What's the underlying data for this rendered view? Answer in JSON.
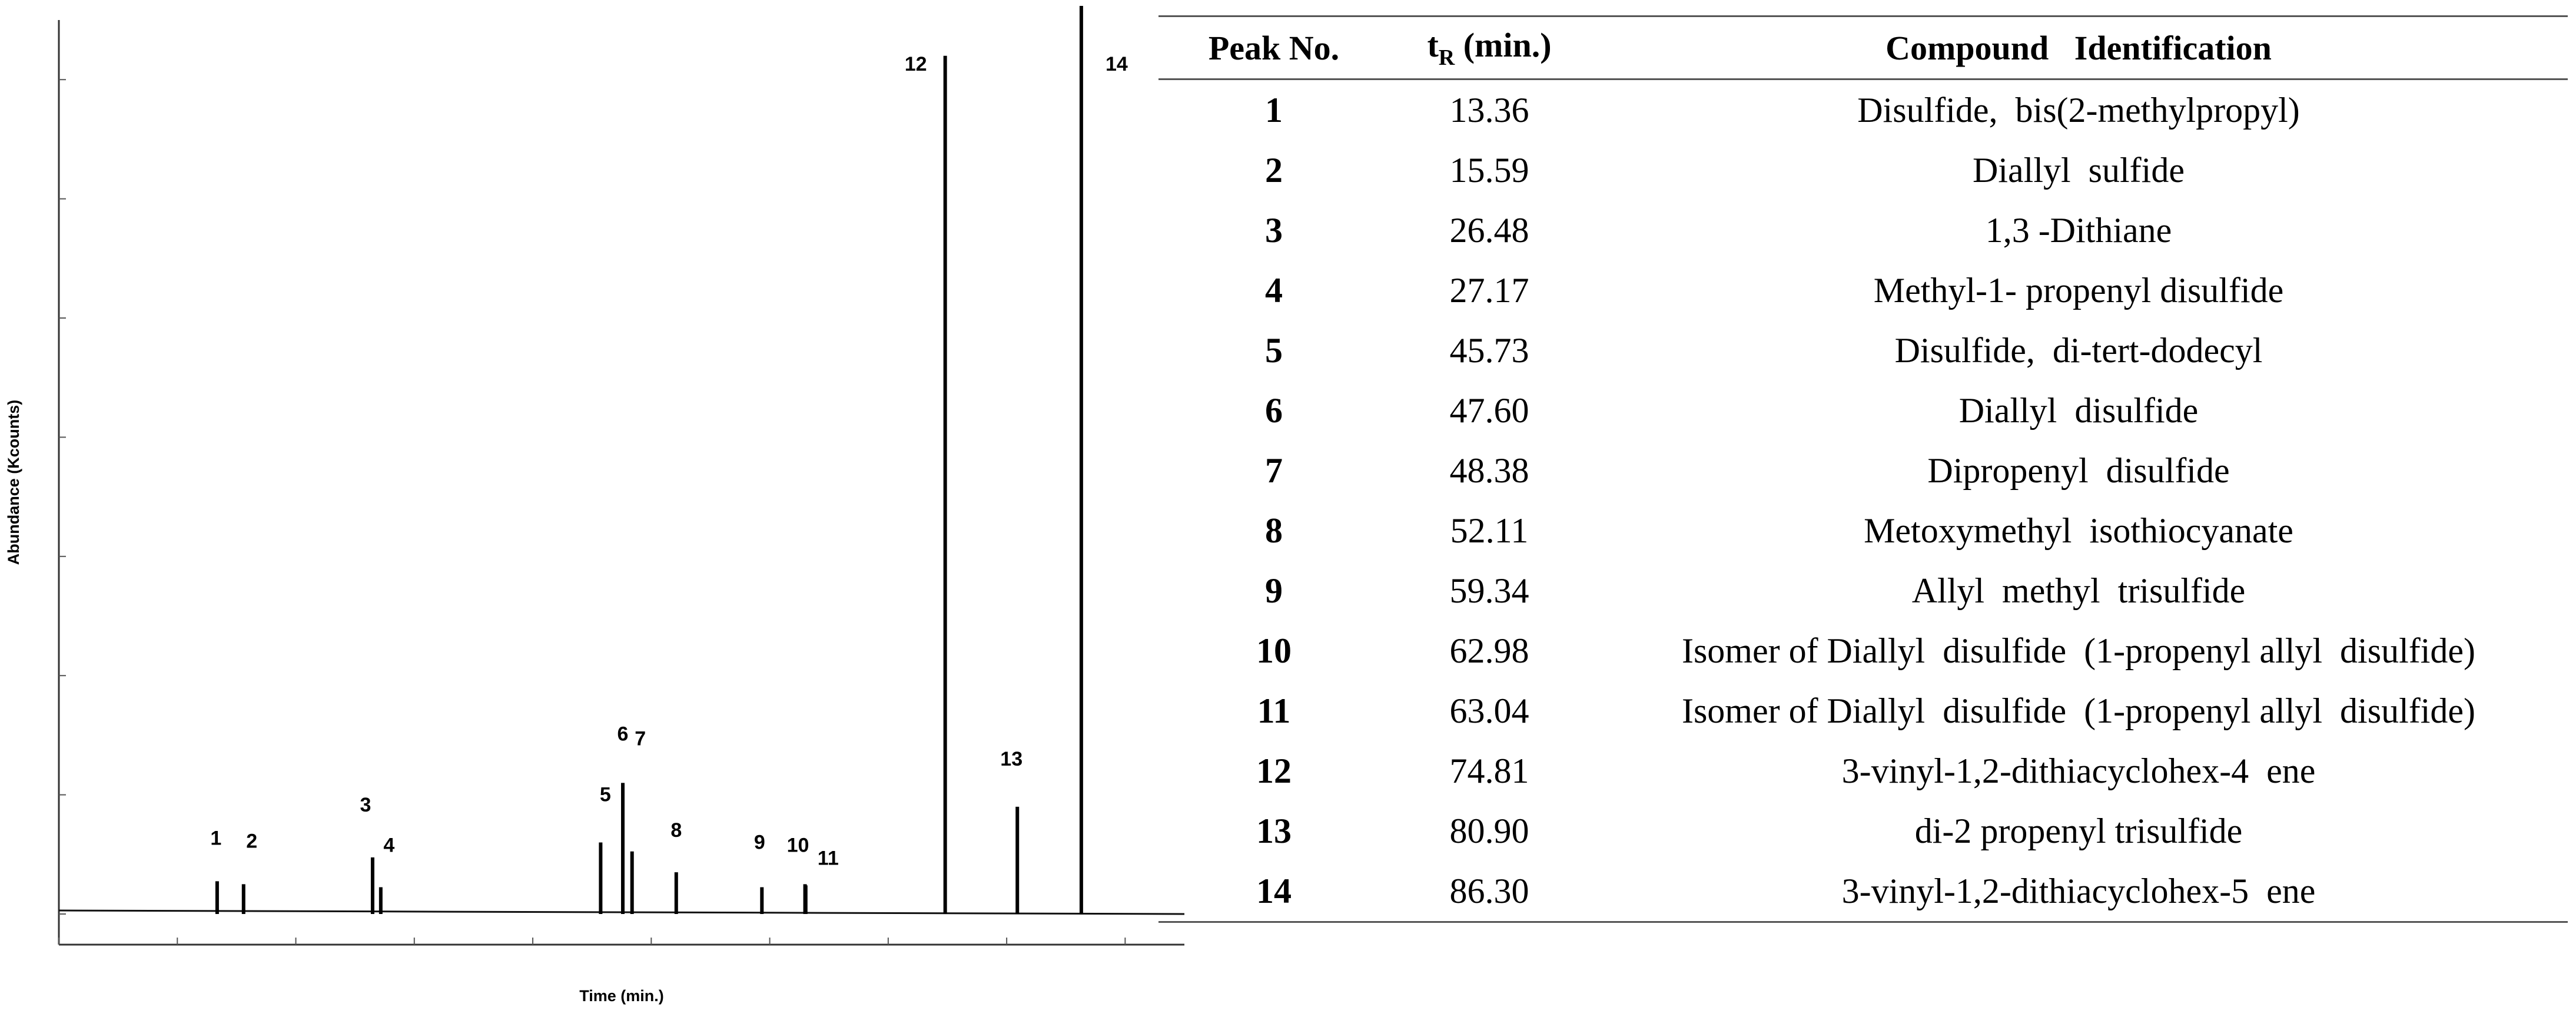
{
  "chart_data": {
    "type": "line",
    "title": "",
    "xlabel": "Time (min.)",
    "ylabel": "Abundance (Kcounts)",
    "xlim": [
      0,
      95
    ],
    "ylim": [
      0,
      15
    ],
    "peaks": [
      {
        "label": "1",
        "x": 13.36,
        "y": 0.55
      },
      {
        "label": "2",
        "x": 15.59,
        "y": 0.5
      },
      {
        "label": "3",
        "x": 26.48,
        "y": 0.95
      },
      {
        "label": "4",
        "x": 27.17,
        "y": 0.45
      },
      {
        "label": "5",
        "x": 45.73,
        "y": 1.2
      },
      {
        "label": "6",
        "x": 47.6,
        "y": 2.2
      },
      {
        "label": "7",
        "x": 48.38,
        "y": 1.05
      },
      {
        "label": "8",
        "x": 52.11,
        "y": 0.7
      },
      {
        "label": "9",
        "x": 59.34,
        "y": 0.45
      },
      {
        "label": "10",
        "x": 62.98,
        "y": 0.5
      },
      {
        "label": "11",
        "x": 63.04,
        "y": 0.48
      },
      {
        "label": "12",
        "x": 74.81,
        "y": 14.4
      },
      {
        "label": "13",
        "x": 80.9,
        "y": 1.8
      },
      {
        "label": "14",
        "x": 86.3,
        "y": 17.0
      }
    ]
  },
  "table": {
    "headers": {
      "peak": "Peak No.",
      "rt_main": "t",
      "rt_sub": "R",
      "rt_unit": " (min.)",
      "compound": "Compound   Identification"
    },
    "rows": [
      {
        "peak": "1",
        "rt": "13.36",
        "compound": "Disulfide,  bis(2-methylpropyl)"
      },
      {
        "peak": "2",
        "rt": "15.59",
        "compound": "Diallyl  sulfide"
      },
      {
        "peak": "3",
        "rt": "26.48",
        "compound": "1,3 -Dithiane"
      },
      {
        "peak": "4",
        "rt": "27.17",
        "compound": "Methyl-1- propenyl disulfide"
      },
      {
        "peak": "5",
        "rt": "45.73",
        "compound": "Disulfide,  di-tert-dodecyl"
      },
      {
        "peak": "6",
        "rt": "47.60",
        "compound": "Diallyl  disulfide"
      },
      {
        "peak": "7",
        "rt": "48.38",
        "compound": "Dipropenyl  disulfide"
      },
      {
        "peak": "8",
        "rt": "52.11",
        "compound": "Metoxymethyl  isothiocyanate"
      },
      {
        "peak": "9",
        "rt": "59.34",
        "compound": "Allyl  methyl  trisulfide"
      },
      {
        "peak": "10",
        "rt": "62.98",
        "compound": "Isomer of Diallyl  disulfide  (1-propenyl allyl  disulfide)"
      },
      {
        "peak": "11",
        "rt": "63.04",
        "compound": "Isomer of Diallyl  disulfide  (1-propenyl allyl  disulfide)"
      },
      {
        "peak": "12",
        "rt": "74.81",
        "compound": "3-vinyl-1,2-dithiacyclohex-4  ene"
      },
      {
        "peak": "13",
        "rt": "80.90",
        "compound": "di-2 propenyl trisulfide"
      },
      {
        "peak": "14",
        "rt": "86.30",
        "compound": "3-vinyl-1,2-dithiacyclohex-5  ene"
      }
    ]
  }
}
